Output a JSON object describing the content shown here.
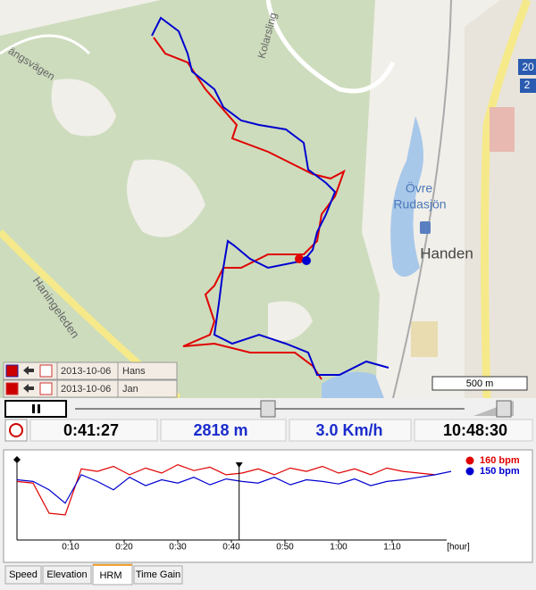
{
  "map": {
    "labels": [
      "Kolarsling",
      "ängsvägen",
      "Haningeleden",
      "Övre",
      "Rudasjön",
      "Handen",
      "20",
      "2"
    ],
    "scale": "500 m"
  },
  "tracks": [
    {
      "date": "2013-10-06",
      "name": "Hans"
    },
    {
      "date": "2013-10-06",
      "name": "Jan"
    }
  ],
  "stats": {
    "elapsed": "0:41:27",
    "distance": "2818 m",
    "speed": "3.0 Km/h",
    "clock": "10:48:30"
  },
  "tabs": [
    "Speed",
    "Elevation",
    "HRM",
    "Time Gain"
  ],
  "chart_data": {
    "type": "line",
    "x_label": "[hour]",
    "x": [
      0,
      0.05,
      0.1,
      0.15,
      0.2,
      0.25,
      0.3,
      0.35,
      0.4,
      0.45,
      0.5,
      0.55,
      0.6,
      0.65,
      0.7,
      0.75,
      0.8,
      0.85,
      0.9,
      0.95,
      1.0,
      1.05,
      1.1,
      1.15,
      1.2,
      1.25,
      1.3,
      1.35
    ],
    "series": [
      {
        "name": "160 bpm",
        "color": "#e00000",
        "values": [
          150,
          148,
          112,
          110,
          165,
          162,
          168,
          158,
          166,
          160,
          170,
          163,
          167,
          158,
          160,
          165,
          158,
          166,
          162,
          168,
          160,
          165,
          158,
          166,
          162,
          160,
          158,
          null
        ]
      },
      {
        "name": "150 bpm",
        "color": "#0000d0",
        "values": [
          152,
          150,
          140,
          124,
          158,
          150,
          140,
          155,
          145,
          152,
          148,
          155,
          146,
          153,
          150,
          148,
          155,
          146,
          152,
          150,
          147,
          153,
          145,
          150,
          152,
          155,
          158,
          162
        ]
      }
    ],
    "xlim": [
      0,
      1.4
    ],
    "ylim": [
      80,
      176
    ],
    "xticks": [
      {
        "value": 0.1667,
        "label": "0:10"
      },
      {
        "value": 0.3333,
        "label": "0:20"
      },
      {
        "value": 0.5,
        "label": "0:30"
      },
      {
        "value": 0.6667,
        "label": "0:40"
      },
      {
        "value": 0.8333,
        "label": "0:50"
      },
      {
        "value": 1.0,
        "label": "1:00"
      },
      {
        "value": 1.1667,
        "label": "1:10"
      }
    ],
    "cursor": 0.6908
  }
}
